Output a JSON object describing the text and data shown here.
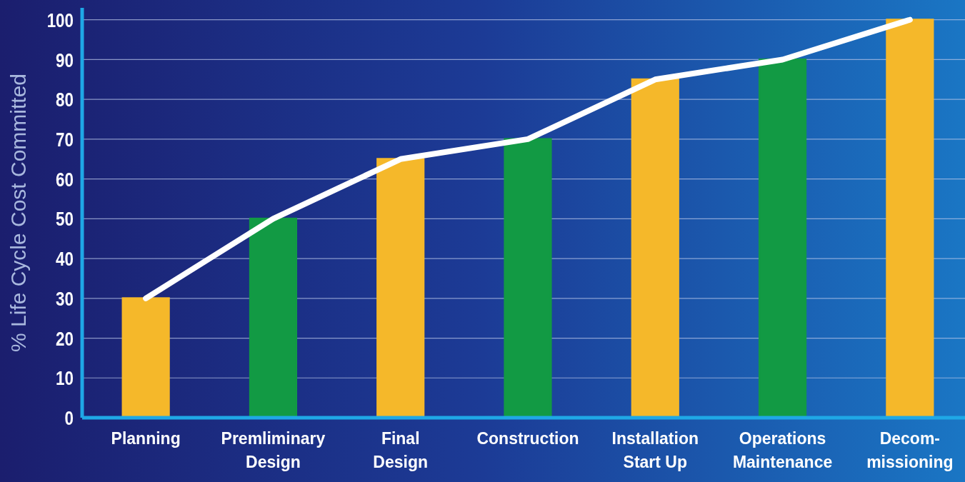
{
  "chart_data": {
    "type": "bar",
    "ylabel": "% Life Cycle Cost Committed",
    "categories": [
      "Planning",
      "Premliminary\nDesign",
      "Final\nDesign",
      "Construction",
      "Installation\nStart Up",
      "Operations\nMaintenance",
      "Decom-\nmissioning"
    ],
    "series": [
      {
        "values": [
          30,
          50,
          65,
          70,
          85,
          90,
          100
        ],
        "colors": [
          "#f5b82a",
          "#129a44",
          "#f5b82a",
          "#129a44",
          "#f5b82a",
          "#129a44",
          "#f5b82a"
        ]
      },
      {
        "type": "line",
        "color": "#ffffff",
        "values": [
          30,
          50,
          65,
          70,
          85,
          90,
          100
        ]
      }
    ],
    "ylim": [
      0,
      103
    ],
    "yticks": [
      0,
      10,
      20,
      30,
      40,
      50,
      60,
      70,
      80,
      90,
      100
    ],
    "grid": "y",
    "marker": "none"
  }
}
